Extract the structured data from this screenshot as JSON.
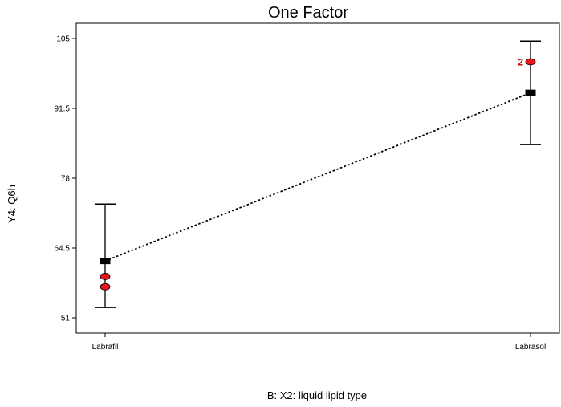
{
  "chart_data": {
    "type": "scatter",
    "title": "One Factor",
    "xlabel": "B: X2: liquid lipid type",
    "ylabel": "Y4: Q6h",
    "ylim": [
      49,
      107
    ],
    "yticks": [
      51,
      64.5,
      78,
      91.5,
      105
    ],
    "ytick_labels": [
      "51",
      "64.5",
      "78",
      "91.5",
      "105"
    ],
    "categories": [
      "Labrafil",
      "Labrasol"
    ],
    "predicted": [
      62,
      94.5
    ],
    "ci_lower": [
      53,
      84.5
    ],
    "ci_upper": [
      73,
      104.5
    ],
    "observed": [
      {
        "category": "Labrafil",
        "y": 59,
        "count": 1
      },
      {
        "category": "Labrafil",
        "y": 57,
        "count": 1
      },
      {
        "category": "Labrasol",
        "y": 100.5,
        "count": 2
      }
    ],
    "annotations": [
      {
        "category": "Labrasol",
        "y": 100.5,
        "text": "2"
      }
    ],
    "colors": {
      "observed": "#e8121b",
      "predicted": "#000000",
      "line": "#000000"
    }
  }
}
